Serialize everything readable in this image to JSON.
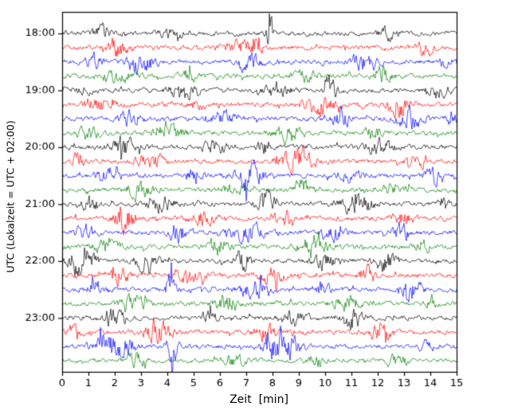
{
  "chart_data": {
    "type": "line",
    "subtype": "helicorder-seismogram",
    "title": "",
    "xlabel": "Zeit  [min]",
    "ylabel": "UTC (Lokalzeit = UTC + 02:00)",
    "x_range": [
      0,
      15
    ],
    "x_ticks": [
      "0",
      "1",
      "2",
      "3",
      "4",
      "5",
      "6",
      "7",
      "8",
      "9",
      "10",
      "11",
      "12",
      "13",
      "14",
      "15"
    ],
    "minutes_per_row": 15,
    "trace_color_cycle": [
      "#000000",
      "#ff0000",
      "#0000ff",
      "#008000"
    ],
    "legend": "none",
    "grid": false,
    "rows": [
      {
        "time": "18:00",
        "labeled": true,
        "color": "#000000",
        "seed": 1,
        "base": 2.2,
        "bursts": [
          [
            1.5,
            0.3,
            3
          ],
          [
            4.2,
            0.5,
            2
          ],
          [
            7.9,
            0.12,
            7
          ],
          [
            12.4,
            0.4,
            2.5
          ]
        ]
      },
      {
        "time": "18:15",
        "labeled": false,
        "color": "#ff0000",
        "seed": 2,
        "base": 2.2,
        "bursts": [
          [
            2.1,
            0.4,
            4
          ],
          [
            6.8,
            0.6,
            3
          ],
          [
            7.4,
            0.15,
            8
          ],
          [
            13.8,
            0.3,
            3
          ]
        ]
      },
      {
        "time": "18:30",
        "labeled": false,
        "color": "#0000ff",
        "seed": 3,
        "base": 2.2,
        "bursts": [
          [
            1.2,
            0.3,
            3
          ],
          [
            3.0,
            0.5,
            5
          ],
          [
            7.2,
            0.4,
            3
          ],
          [
            11.5,
            0.5,
            4
          ],
          [
            14.6,
            0.2,
            3
          ]
        ]
      },
      {
        "time": "18:45",
        "labeled": false,
        "color": "#008000",
        "seed": 4,
        "base": 2.2,
        "bursts": [
          [
            2.0,
            0.6,
            3
          ],
          [
            4.8,
            0.3,
            2.5
          ],
          [
            9.3,
            0.5,
            2
          ],
          [
            12.2,
            0.3,
            4
          ]
        ]
      },
      {
        "time": "19:00",
        "labeled": true,
        "color": "#000000",
        "seed": 5,
        "base": 2.2,
        "bursts": [
          [
            0.8,
            0.3,
            3
          ],
          [
            4.5,
            0.4,
            5
          ],
          [
            8.2,
            0.5,
            3
          ],
          [
            10.2,
            0.2,
            6
          ],
          [
            14.3,
            0.4,
            3
          ]
        ]
      },
      {
        "time": "19:15",
        "labeled": false,
        "color": "#ff0000",
        "seed": 6,
        "base": 2.2,
        "bursts": [
          [
            1.4,
            0.5,
            3
          ],
          [
            5.2,
            0.3,
            2.5
          ],
          [
            9.8,
            0.6,
            4
          ],
          [
            12.8,
            0.4,
            5
          ]
        ]
      },
      {
        "time": "19:30",
        "labeled": false,
        "color": "#0000ff",
        "seed": 7,
        "base": 2.2,
        "bursts": [
          [
            2.6,
            0.4,
            4
          ],
          [
            6.1,
            0.5,
            3
          ],
          [
            10.6,
            0.3,
            5
          ],
          [
            13.2,
            0.5,
            4
          ],
          [
            14.8,
            0.15,
            5
          ]
        ]
      },
      {
        "time": "19:45",
        "labeled": false,
        "color": "#008000",
        "seed": 8,
        "base": 2.2,
        "bursts": [
          [
            1.0,
            0.4,
            2.5
          ],
          [
            4.0,
            0.6,
            4
          ],
          [
            8.6,
            0.5,
            3
          ],
          [
            11.8,
            0.3,
            2.5
          ]
        ]
      },
      {
        "time": "20:00",
        "labeled": true,
        "color": "#000000",
        "seed": 9,
        "base": 2.2,
        "bursts": [
          [
            2.3,
            0.5,
            4
          ],
          [
            5.8,
            0.4,
            3
          ],
          [
            7.6,
            0.2,
            5
          ],
          [
            12.0,
            0.6,
            3
          ]
        ]
      },
      {
        "time": "20:15",
        "labeled": false,
        "color": "#ff0000",
        "seed": 10,
        "base": 2.2,
        "bursts": [
          [
            0.6,
            0.2,
            4
          ],
          [
            3.4,
            0.5,
            3
          ],
          [
            8.9,
            0.6,
            5
          ],
          [
            13.5,
            0.3,
            4
          ]
        ]
      },
      {
        "time": "20:30",
        "labeled": false,
        "color": "#0000ff",
        "seed": 11,
        "base": 2.2,
        "bursts": [
          [
            1.8,
            0.4,
            3
          ],
          [
            5.0,
            0.3,
            4
          ],
          [
            7.1,
            0.5,
            6
          ],
          [
            10.9,
            0.4,
            3
          ],
          [
            14.1,
            0.3,
            4
          ]
        ]
      },
      {
        "time": "20:45",
        "labeled": false,
        "color": "#008000",
        "seed": 12,
        "base": 2.2,
        "bursts": [
          [
            2.9,
            0.5,
            3
          ],
          [
            6.5,
            0.4,
            2.5
          ],
          [
            9.1,
            0.3,
            5
          ],
          [
            12.6,
            0.5,
            3
          ]
        ]
      },
      {
        "time": "21:00",
        "labeled": true,
        "color": "#000000",
        "seed": 13,
        "base": 2.2,
        "bursts": [
          [
            1.1,
            0.3,
            4
          ],
          [
            3.8,
            0.5,
            3
          ],
          [
            7.8,
            0.4,
            5
          ],
          [
            11.2,
            0.6,
            4
          ],
          [
            14.5,
            0.2,
            3
          ]
        ]
      },
      {
        "time": "21:15",
        "labeled": false,
        "color": "#ff0000",
        "seed": 14,
        "base": 2.2,
        "bursts": [
          [
            2.4,
            0.4,
            5
          ],
          [
            5.4,
            0.5,
            3
          ],
          [
            8.4,
            0.3,
            4
          ],
          [
            13.0,
            0.4,
            3
          ]
        ]
      },
      {
        "time": "21:30",
        "labeled": false,
        "color": "#0000ff",
        "seed": 15,
        "base": 2.2,
        "bursts": [
          [
            0.9,
            0.4,
            3
          ],
          [
            4.4,
            0.3,
            5
          ],
          [
            7.0,
            0.6,
            4
          ],
          [
            10.4,
            0.4,
            3
          ],
          [
            12.9,
            0.3,
            5
          ]
        ]
      },
      {
        "time": "21:45",
        "labeled": false,
        "color": "#008000",
        "seed": 16,
        "base": 2.2,
        "bursts": [
          [
            1.6,
            0.5,
            3
          ],
          [
            5.9,
            0.4,
            4
          ],
          [
            9.5,
            0.5,
            5
          ],
          [
            13.7,
            0.3,
            3
          ]
        ]
      },
      {
        "time": "22:00",
        "labeled": true,
        "color": "#000000",
        "seed": 17,
        "base": 2.2,
        "bursts": [
          [
            0.7,
            0.5,
            6
          ],
          [
            3.2,
            0.4,
            4
          ],
          [
            6.9,
            0.3,
            5
          ],
          [
            10.0,
            0.5,
            3
          ],
          [
            12.3,
            0.4,
            4
          ]
        ]
      },
      {
        "time": "22:15",
        "labeled": false,
        "color": "#ff0000",
        "seed": 18,
        "base": 2.2,
        "bursts": [
          [
            2.2,
            0.3,
            4
          ],
          [
            4.9,
            0.5,
            3
          ],
          [
            8.0,
            0.4,
            6
          ],
          [
            11.6,
            0.3,
            4
          ]
        ]
      },
      {
        "time": "22:30",
        "labeled": false,
        "color": "#0000ff",
        "seed": 19,
        "base": 2.2,
        "bursts": [
          [
            1.3,
            0.4,
            3
          ],
          [
            4.1,
            0.2,
            7
          ],
          [
            7.3,
            0.5,
            4
          ],
          [
            9.9,
            0.3,
            3
          ],
          [
            13.3,
            0.4,
            4
          ]
        ]
      },
      {
        "time": "22:45",
        "labeled": false,
        "color": "#008000",
        "seed": 20,
        "base": 2.2,
        "bursts": [
          [
            2.7,
            0.5,
            3
          ],
          [
            6.3,
            0.4,
            4
          ],
          [
            10.8,
            0.5,
            3
          ],
          [
            14.0,
            0.2,
            4
          ]
        ]
      },
      {
        "time": "23:00",
        "labeled": true,
        "color": "#000000",
        "seed": 21,
        "base": 2.2,
        "bursts": [
          [
            1.9,
            0.4,
            4
          ],
          [
            5.6,
            0.3,
            3
          ],
          [
            8.8,
            0.5,
            3
          ],
          [
            11.0,
            0.4,
            5
          ]
        ]
      },
      {
        "time": "23:15",
        "labeled": false,
        "color": "#ff0000",
        "seed": 22,
        "base": 2.2,
        "bursts": [
          [
            0.5,
            0.3,
            3
          ],
          [
            3.6,
            0.5,
            5
          ],
          [
            7.7,
            0.4,
            4
          ],
          [
            12.1,
            0.5,
            3
          ]
        ]
      },
      {
        "time": "23:30",
        "labeled": false,
        "color": "#0000ff",
        "seed": 23,
        "base": 2.2,
        "bursts": [
          [
            1.7,
            0.5,
            6
          ],
          [
            2.5,
            0.3,
            5
          ],
          [
            4.2,
            0.2,
            7
          ],
          [
            8.3,
            0.6,
            8
          ],
          [
            13.9,
            0.3,
            3
          ]
        ]
      },
      {
        "time": "23:45",
        "labeled": false,
        "color": "#008000",
        "seed": 24,
        "base": 2.0,
        "bursts": [
          [
            2.8,
            0.4,
            3
          ],
          [
            6.6,
            0.5,
            2.5
          ],
          [
            9.6,
            0.3,
            3
          ],
          [
            12.7,
            0.4,
            2.5
          ]
        ]
      }
    ]
  }
}
